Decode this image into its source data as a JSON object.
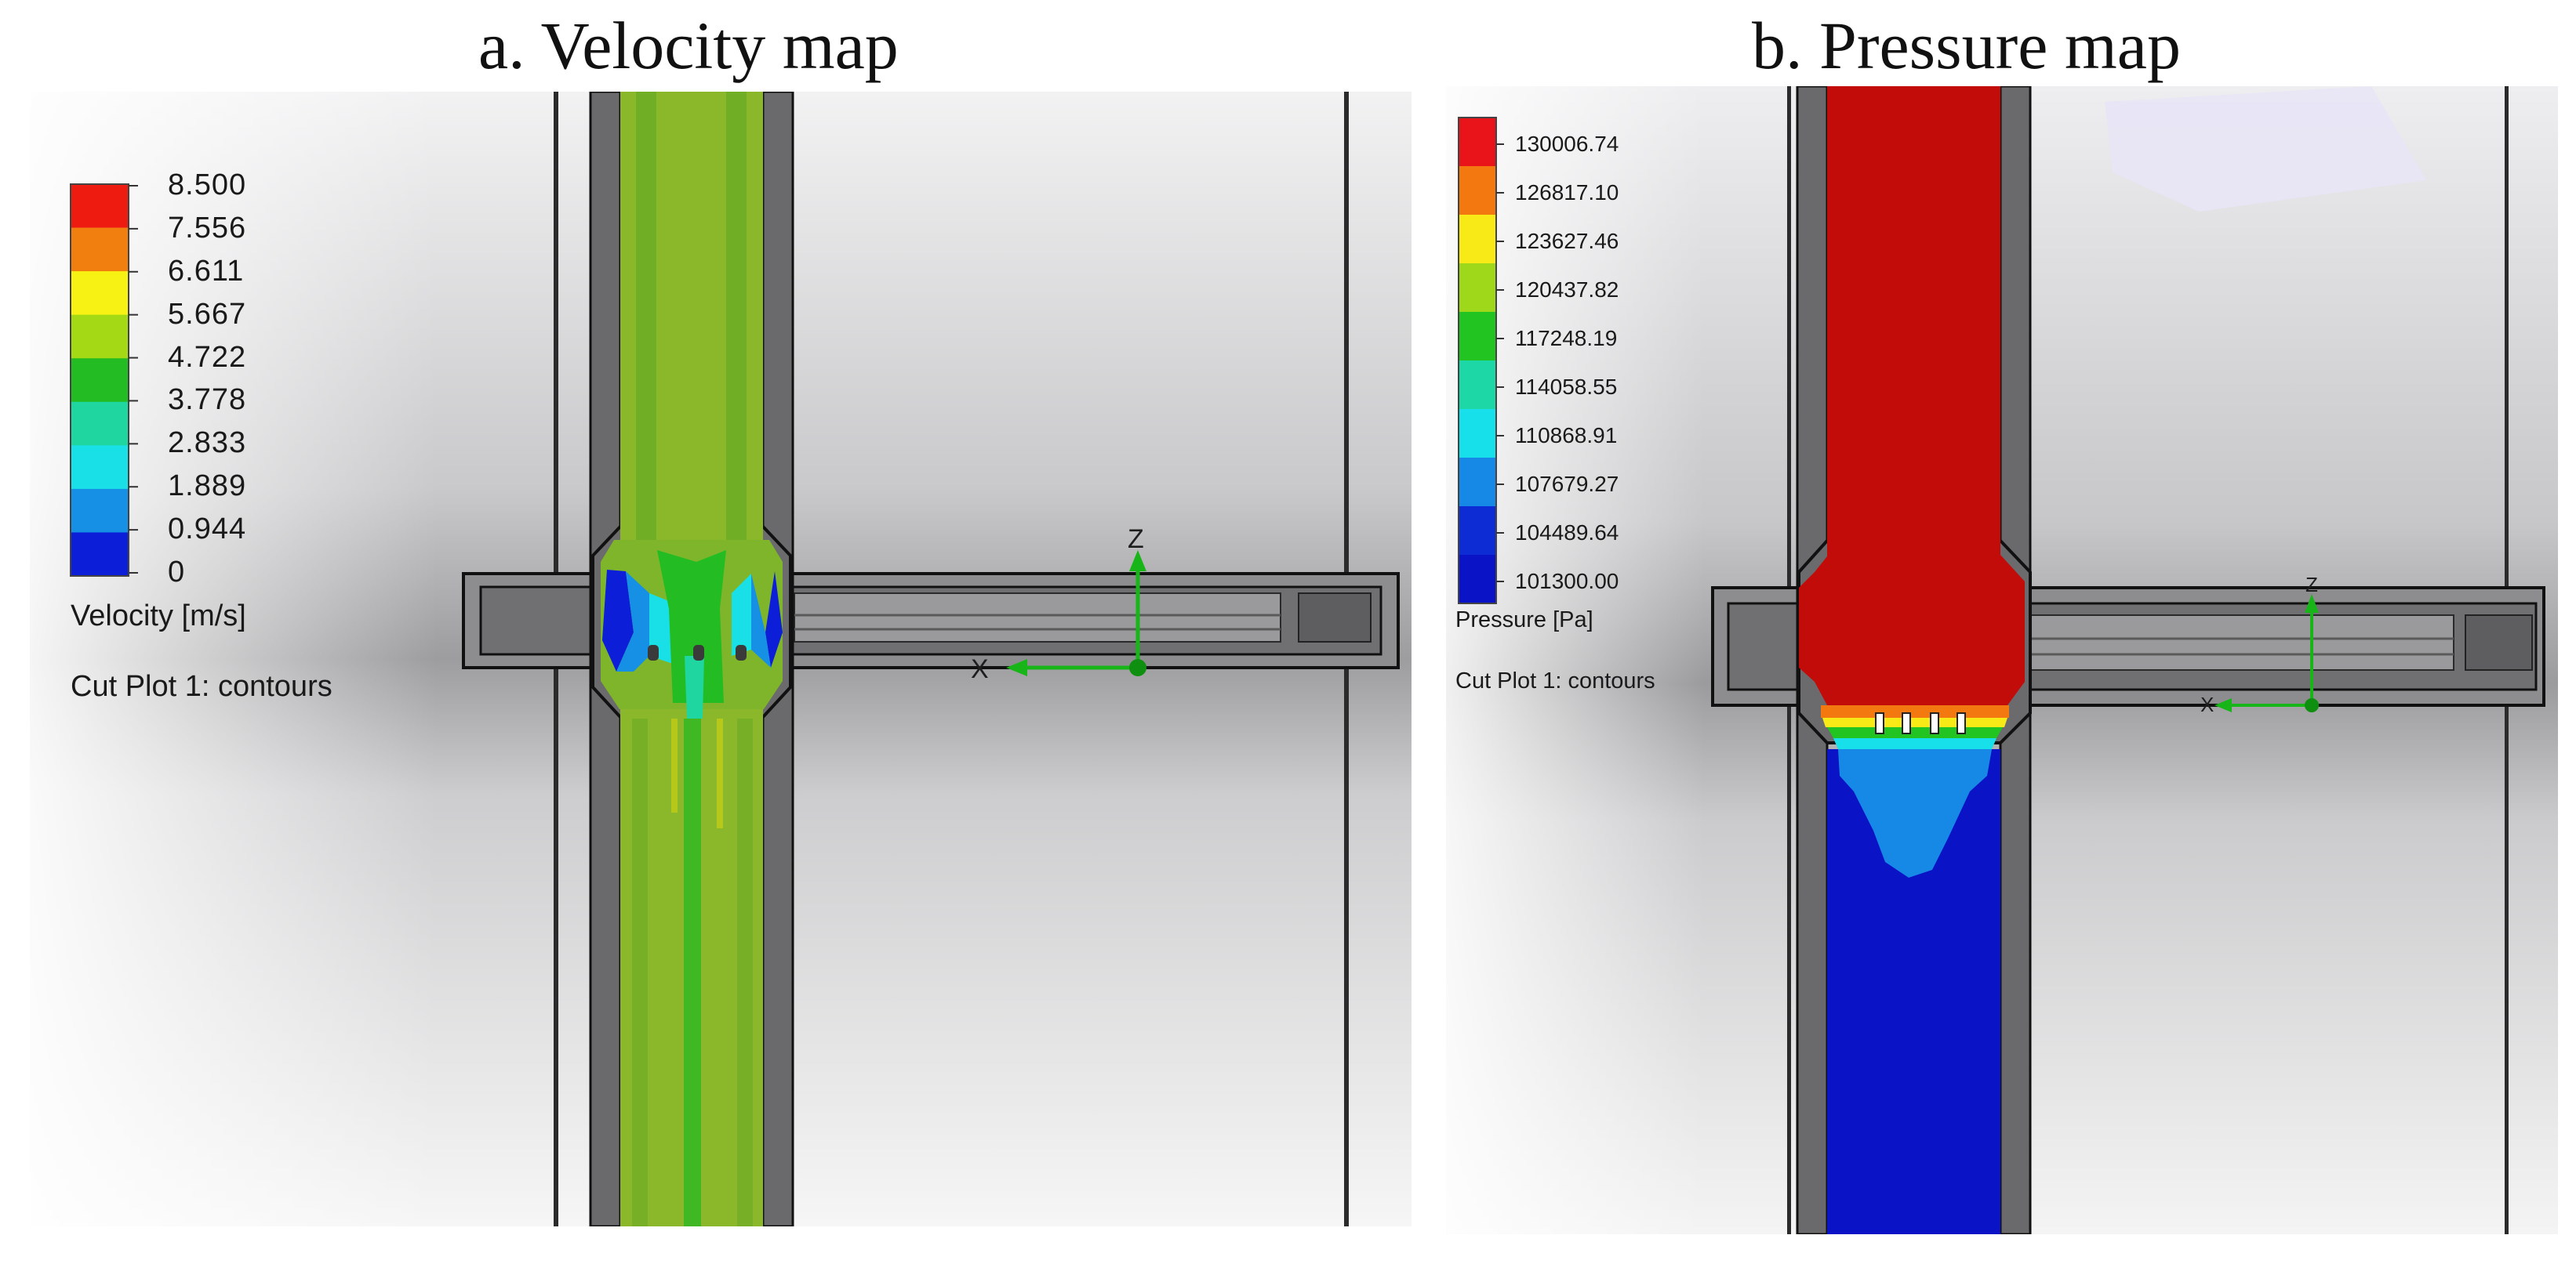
{
  "panels": [
    {
      "title": "a. Velocity map",
      "colorbar": {
        "labels": [
          "8.500",
          "7.556",
          "6.611",
          "5.667",
          "4.722",
          "3.778",
          "2.833",
          "1.889",
          "0.944",
          "0"
        ],
        "colors": [
          "#ee1c10",
          "#f07f10",
          "#f8f214",
          "#a4d916",
          "#23bd23",
          "#20d6a0",
          "#19e0e7",
          "#1590e4",
          "#0c1ed8"
        ],
        "unit_label": "Velocity [m/s]",
        "plot_label": "Cut Plot 1: contours"
      },
      "axis_labels": {
        "vertical": "Z",
        "horizontal": "X"
      }
    },
    {
      "title": "b. Pressure map",
      "colorbar": {
        "labels": [
          "130006.74",
          "126817.10",
          "123627.46",
          "120437.82",
          "117248.19",
          "114058.55",
          "110868.91",
          "107679.27",
          "104489.64",
          "101300.00"
        ],
        "colors": [
          "#e8141a",
          "#f2780f",
          "#f8ea16",
          "#9fd81a",
          "#22c422",
          "#1dd7a6",
          "#18e0ea",
          "#1689e6",
          "#0d2cd4",
          "#0a14c6"
        ],
        "unit_label": "Pressure [Pa]",
        "plot_label": "Cut Plot 1: contours"
      },
      "axis_labels": {
        "vertical": "Z",
        "horizontal": "X"
      }
    }
  ],
  "colors": {
    "pipe_wall": "#5f5f5f",
    "flow_green": "#8ab82a",
    "flow_dark_green": "#23bd23",
    "pressure_high": "#c20c0a",
    "pressure_low": "#0a14c6",
    "axis_green": "#18b518"
  }
}
